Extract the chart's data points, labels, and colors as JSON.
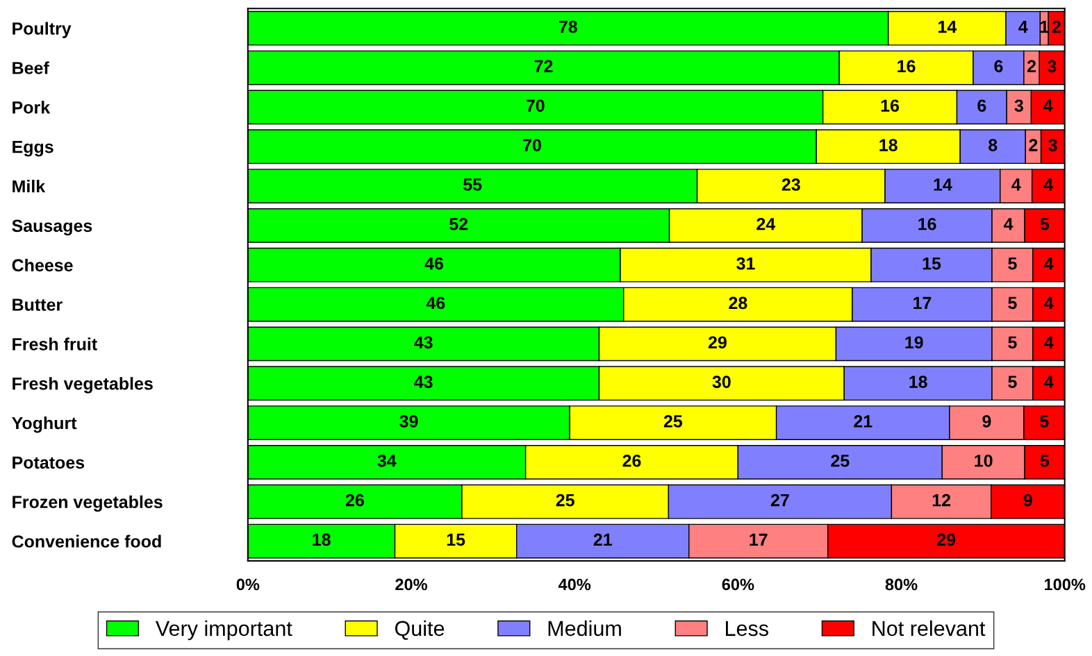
{
  "chart_data": {
    "type": "bar",
    "orientation": "horizontal",
    "stacked": true,
    "legend": "bottom",
    "grid": false,
    "categories": [
      "Poultry",
      "Beef",
      "Pork",
      "Eggs",
      "Milk",
      "Sausages",
      "Cheese",
      "Butter",
      "Fresh fruit",
      "Fresh vegetables",
      "Yoghurt",
      "Potatoes",
      "Frozen vegetables",
      "Convenience food"
    ],
    "series": [
      {
        "name": "Very important",
        "color": "#00ff00",
        "values": [
          78.4,
          72.4,
          70.4,
          69.6,
          55.0,
          51.6,
          45.6,
          46.0,
          43.0,
          43.0,
          39.4,
          34.0,
          26.2,
          18.0
        ],
        "value_labels": [
          "78",
          "72",
          "70",
          "70",
          "55",
          "52",
          "46",
          "46",
          "43",
          "43",
          "39",
          "34",
          "26",
          "18"
        ]
      },
      {
        "name": "Quite",
        "color": "#ffff00",
        "values": [
          14.4,
          16.4,
          16.4,
          17.6,
          23.0,
          23.6,
          30.7,
          28.0,
          29.0,
          30.0,
          25.3,
          26.0,
          25.3,
          14.9
        ],
        "value_labels": [
          "14",
          "16",
          "16",
          "18",
          "23",
          "24",
          "31",
          "28",
          "29",
          "30",
          "25",
          "26",
          "25",
          "15"
        ]
      },
      {
        "name": "Medium",
        "color": "#8080ff",
        "values": [
          4.2,
          6.2,
          6.1,
          8.0,
          14.1,
          15.9,
          14.8,
          17.1,
          19.1,
          18.1,
          21.2,
          25.0,
          27.3,
          21.1
        ],
        "value_labels": [
          "4",
          "6",
          "6",
          "8",
          "14",
          "16",
          "15",
          "17",
          "19",
          "18",
          "21",
          "25",
          "27",
          "21"
        ]
      },
      {
        "name": "Less",
        "color": "#ff8080",
        "values": [
          1.0,
          1.9,
          3.0,
          1.9,
          3.9,
          4.0,
          5.0,
          5.0,
          5.0,
          5.0,
          9.1,
          10.1,
          12.2,
          17.0
        ],
        "value_labels": [
          "1",
          "2",
          "3",
          "2",
          "4",
          "4",
          "5",
          "5",
          "5",
          "5",
          "9",
          "10",
          "12",
          "17"
        ]
      },
      {
        "name": "Not relevant",
        "color": "#ff0000",
        "values": [
          2.0,
          3.1,
          4.1,
          2.9,
          4.0,
          4.9,
          3.9,
          3.9,
          3.9,
          3.9,
          5.0,
          4.9,
          9.0,
          29.0
        ],
        "value_labels": [
          "2",
          "3",
          "4",
          "3",
          "4",
          "5",
          "4",
          "4",
          "4",
          "4",
          "5",
          "5",
          "9",
          "29"
        ]
      }
    ],
    "xlim": [
      0,
      100
    ],
    "xticks": [
      {
        "value": 0,
        "label": "0%"
      },
      {
        "value": 20,
        "label": "20%"
      },
      {
        "value": 40,
        "label": "40%"
      },
      {
        "value": 60,
        "label": "60%"
      },
      {
        "value": 80,
        "label": "80%"
      },
      {
        "value": 100,
        "label": "100%"
      }
    ]
  }
}
